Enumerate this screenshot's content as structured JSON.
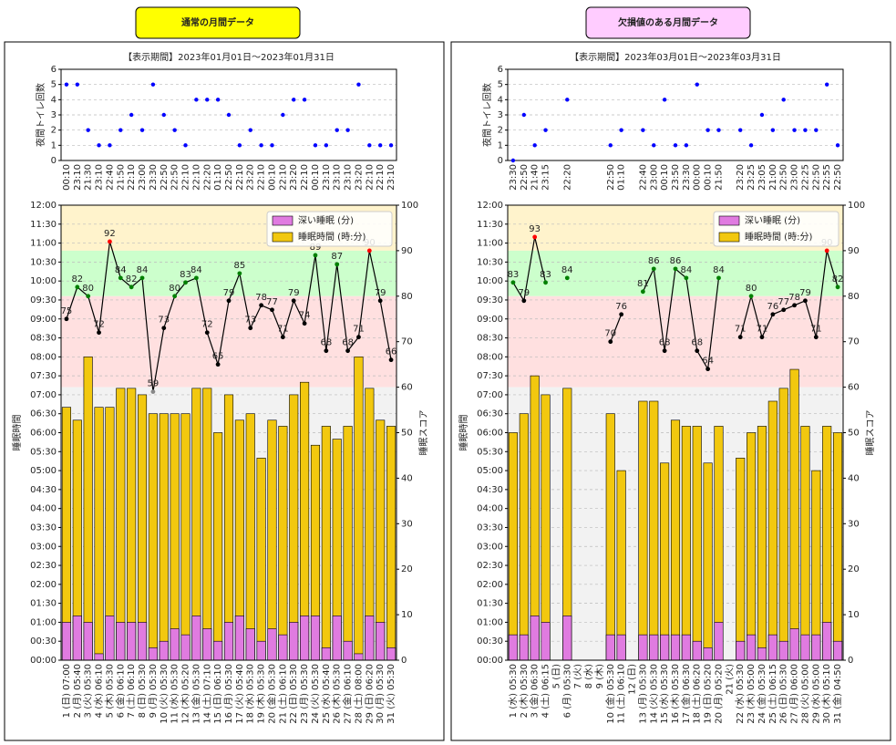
{
  "chart_data": [
    {
      "label": "通常の月間データ",
      "label_color": "#ffff00",
      "title": "【表示期間】2023年01月01日～2023年01月31日",
      "toilet": {
        "type": "scatter",
        "ylabel": "夜間トイレ回数",
        "color": "#0000ff",
        "grid": true,
        "categories": [
          "00:10",
          "23:10",
          "21:30",
          "23:10",
          "22:40",
          "21:50",
          "22:10",
          "23:00",
          "23:30",
          "22:50",
          "22:50",
          "22:10",
          "22:10",
          "22:20",
          "01:10",
          "22:50",
          "22:10",
          "23:20",
          "22:10",
          "00:10",
          "22:10",
          "23:20",
          "22:10",
          "00:10",
          "23:10",
          "23:10",
          "23:10",
          "23:20",
          "22:10",
          "22:10",
          "23:10"
        ],
        "values": [
          5,
          5,
          2,
          1,
          1,
          2,
          3,
          2,
          5,
          3,
          2,
          1,
          4,
          4,
          4,
          3,
          1,
          2,
          1,
          1,
          3,
          4,
          4,
          1,
          1,
          2,
          2,
          5,
          1,
          1,
          1
        ],
        "ylim": [
          0,
          6
        ],
        "yticks": [
          0,
          1,
          2,
          3,
          4,
          5,
          6
        ]
      },
      "sleep": {
        "type": "bar",
        "ylabel": "睡眠時間",
        "y2label": "睡眠スコア",
        "grid": true,
        "legend": "upper right",
        "categories": [
          "1 (日) 07:00",
          "2 (月) 05:40",
          "3 (火) 05:30",
          "4 (水) 06:10",
          "5 (木) 05:30",
          "6 (金) 06:10",
          "7 (土) 06:10",
          "8 (日) 05:30",
          "9 (月) 05:30",
          "10 (火) 05:30",
          "11 (水) 05:30",
          "12 (木) 05:20",
          "13 (金) 05:30",
          "14 (土) 07:10",
          "15 (日) 06:10",
          "16 (月) 05:30",
          "17 (火) 05:40",
          "18 (水) 05:30",
          "19 (木) 05:30",
          "20 (金) 05:30",
          "21 (土) 06:10",
          "22 (日) 05:30",
          "23 (月) 05:30",
          "24 (火) 05:30",
          "25 (水) 05:40",
          "26 (木) 05:30",
          "27 (金) 06:10",
          "28 (土) 08:00",
          "29 (日) 06:20",
          "30 (月) 05:30",
          "31 (火) 05:30"
        ],
        "series": [
          {
            "name": "深い睡眠 (分)",
            "color": "#e07be0",
            "values": [
              1,
              1.17,
              1,
              0.17,
              1.17,
              1,
              1,
              1,
              0.33,
              0.5,
              0.83,
              0.67,
              1.17,
              0.83,
              0.5,
              1,
              1.17,
              0.83,
              0.5,
              0.83,
              0.67,
              1,
              1.17,
              1.17,
              0.33,
              1.17,
              0.5,
              0.17,
              1.17,
              1,
              0.33
            ]
          },
          {
            "name": "睡眠時間 (時:分)",
            "color": "#f2c80f",
            "values": [
              6.67,
              6.33,
              8,
              6.67,
              6.67,
              7.17,
              7.17,
              7,
              6.5,
              6.5,
              6.5,
              6.5,
              7.17,
              7.17,
              6,
              7,
              6.33,
              6.5,
              5.33,
              6.33,
              6.17,
              7,
              7.33,
              5.67,
              6.17,
              5.83,
              6.17,
              8,
              7.17,
              6.33,
              6.17
            ]
          }
        ],
        "line": {
          "type": "line",
          "axis": "y2",
          "color": "#000000",
          "values": [
            75,
            82,
            80,
            72,
            92,
            84,
            82,
            84,
            59,
            73,
            80,
            83,
            84,
            72,
            65,
            79,
            85,
            73,
            78,
            77,
            71,
            79,
            74,
            89,
            68,
            87,
            68,
            71,
            90,
            79,
            66
          ]
        },
        "bands": [
          {
            "from": 90,
            "to": 100,
            "color": "#fff3cc",
            "marker": "#ff0000"
          },
          {
            "from": 80,
            "to": 90,
            "color": "#ccffcc",
            "marker": "#008000"
          },
          {
            "from": 60,
            "to": 80,
            "color": "#ffe0e0",
            "marker": "#000000"
          },
          {
            "from": 0,
            "to": 60,
            "color": "#f2f2f2",
            "marker": "#888888"
          }
        ],
        "ylim": [
          0,
          12
        ],
        "yticks": [
          {
            "value": 0,
            "label": "00:00"
          },
          {
            "value": 0.5,
            "label": "00:30"
          },
          {
            "value": 1,
            "label": "01:00"
          },
          {
            "value": 1.5,
            "label": "01:30"
          },
          {
            "value": 2,
            "label": "02:00"
          },
          {
            "value": 2.5,
            "label": "02:30"
          },
          {
            "value": 3,
            "label": "03:00"
          },
          {
            "value": 3.5,
            "label": "03:30"
          },
          {
            "value": 4,
            "label": "04:00"
          },
          {
            "value": 4.5,
            "label": "04:30"
          },
          {
            "value": 5,
            "label": "05:00"
          },
          {
            "value": 5.5,
            "label": "05:30"
          },
          {
            "value": 6,
            "label": "06:00"
          },
          {
            "value": 6.5,
            "label": "06:30"
          },
          {
            "value": 7,
            "label": "07:00"
          },
          {
            "value": 7.5,
            "label": "07:30"
          },
          {
            "value": 8,
            "label": "08:00"
          },
          {
            "value": 8.5,
            "label": "08:30"
          },
          {
            "value": 9,
            "label": "09:00"
          },
          {
            "value": 9.5,
            "label": "09:30"
          },
          {
            "value": 10,
            "label": "10:00"
          },
          {
            "value": 10.5,
            "label": "10:30"
          },
          {
            "value": 11,
            "label": "11:00"
          },
          {
            "value": 11.5,
            "label": "11:30"
          },
          {
            "value": 12,
            "label": "12:00"
          }
        ],
        "y2lim": [
          0,
          100
        ],
        "y2ticks": [
          0,
          10,
          20,
          30,
          40,
          50,
          60,
          70,
          80,
          90,
          100
        ]
      }
    },
    {
      "label": "欠損値のある月間データ",
      "label_color": "#ffccff",
      "title": "【表示期間】2023年03月01日～2023年03月31日",
      "toilet": {
        "type": "scatter",
        "ylabel": "夜間トイレ回数",
        "color": "#0000ff",
        "grid": true,
        "categories": [
          "23:30",
          "22:50",
          "21:40",
          "23:15",
          null,
          "22:20",
          null,
          null,
          null,
          "22:50",
          "01:10",
          null,
          "22:40",
          "23:00",
          "00:10",
          "23:50",
          "23:30",
          "00:00",
          "00:10",
          "21:50",
          null,
          "23:20",
          "23:25",
          "23:05",
          "21:00",
          "22:50",
          "23:00",
          "22:25",
          "22:50",
          "22:55",
          "22:50"
        ],
        "values": [
          0,
          3,
          1,
          2,
          null,
          4,
          null,
          null,
          null,
          1,
          2,
          null,
          2,
          1,
          4,
          1,
          1,
          5,
          2,
          2,
          null,
          2,
          1,
          3,
          2,
          4,
          2,
          2,
          2,
          5,
          1
        ],
        "ylim": [
          0,
          6
        ],
        "yticks": [
          0,
          1,
          2,
          3,
          4,
          5,
          6
        ]
      },
      "sleep": {
        "type": "bar",
        "ylabel": "睡眠時間",
        "y2label": "睡眠スコア",
        "grid": true,
        "legend": "upper right",
        "categories": [
          "1 (水) 05:30",
          "2 (木) 05:30",
          "3 (金) 06:30",
          "4 (土) 06:15",
          "5 (日)",
          "6 (月) 05:30",
          "7 (火)",
          "8 (水)",
          "9 (木)",
          "10 (金) 05:30",
          "11 (土) 06:10",
          "12 (日)",
          "13 (月) 05:30",
          "14 (火) 05:30",
          "15 (水) 05:30",
          "16 (木) 05:30",
          "17 (金) 06:30",
          "18 (土) 06:20",
          "19 (日) 05:20",
          "20 (月) 05:20",
          "21 (火)",
          "22 (水) 05:30",
          "23 (木) 05:00",
          "24 (金) 05:30",
          "25 (土) 06:15",
          "26 (日) 05:30",
          "27 (月) 06:00",
          "28 (火) 05:00",
          "29 (水) 05:00",
          "30 (木) 05:10",
          "31 (金) 04:50"
        ],
        "series": [
          {
            "name": "深い睡眠 (分)",
            "color": "#e07be0",
            "values": [
              0.67,
              0.67,
              1.17,
              1,
              null,
              1.17,
              null,
              null,
              null,
              0.67,
              0.67,
              null,
              0.67,
              0.67,
              0.67,
              0.67,
              0.67,
              0.5,
              0.33,
              1,
              null,
              0.5,
              0.67,
              0.33,
              0.67,
              0.5,
              0.83,
              0.67,
              0.67,
              1,
              0.5
            ]
          },
          {
            "name": "睡眠時間 (時:分)",
            "color": "#f2c80f",
            "values": [
              6,
              6.5,
              7.5,
              7,
              null,
              7.17,
              null,
              null,
              null,
              6.5,
              5,
              null,
              6.83,
              6.83,
              5.2,
              6.33,
              6.17,
              6.17,
              5.2,
              6.17,
              null,
              5.33,
              6,
              6.17,
              6.83,
              7.17,
              7.67,
              6.17,
              5,
              6.17,
              6
            ]
          }
        ],
        "line": {
          "type": "line",
          "axis": "y2",
          "color": "#000000",
          "values": [
            83,
            79,
            93,
            83,
            null,
            84,
            null,
            null,
            null,
            70,
            76,
            null,
            81,
            86,
            68,
            86,
            84,
            68,
            64,
            84,
            null,
            71,
            80,
            71,
            76,
            77,
            78,
            79,
            71,
            90,
            82
          ]
        },
        "bands": [
          {
            "from": 90,
            "to": 100,
            "color": "#fff3cc",
            "marker": "#ff0000"
          },
          {
            "from": 80,
            "to": 90,
            "color": "#ccffcc",
            "marker": "#008000"
          },
          {
            "from": 60,
            "to": 80,
            "color": "#ffe0e0",
            "marker": "#000000"
          },
          {
            "from": 0,
            "to": 60,
            "color": "#f2f2f2",
            "marker": "#888888"
          }
        ],
        "ylim": [
          0,
          12
        ],
        "yticks": [
          {
            "value": 0,
            "label": "00:00"
          },
          {
            "value": 0.5,
            "label": "00:30"
          },
          {
            "value": 1,
            "label": "01:00"
          },
          {
            "value": 1.5,
            "label": "01:30"
          },
          {
            "value": 2,
            "label": "02:00"
          },
          {
            "value": 2.5,
            "label": "02:30"
          },
          {
            "value": 3,
            "label": "03:00"
          },
          {
            "value": 3.5,
            "label": "03:30"
          },
          {
            "value": 4,
            "label": "04:00"
          },
          {
            "value": 4.5,
            "label": "04:30"
          },
          {
            "value": 5,
            "label": "05:00"
          },
          {
            "value": 5.5,
            "label": "05:30"
          },
          {
            "value": 6,
            "label": "06:00"
          },
          {
            "value": 6.5,
            "label": "06:30"
          },
          {
            "value": 7,
            "label": "07:00"
          },
          {
            "value": 7.5,
            "label": "07:30"
          },
          {
            "value": 8,
            "label": "08:00"
          },
          {
            "value": 8.5,
            "label": "08:30"
          },
          {
            "value": 9,
            "label": "09:00"
          },
          {
            "value": 9.5,
            "label": "09:30"
          },
          {
            "value": 10,
            "label": "10:00"
          },
          {
            "value": 10.5,
            "label": "10:30"
          },
          {
            "value": 11,
            "label": "11:00"
          },
          {
            "value": 11.5,
            "label": "11:30"
          },
          {
            "value": 12,
            "label": "12:00"
          }
        ],
        "y2lim": [
          0,
          100
        ],
        "y2ticks": [
          0,
          10,
          20,
          30,
          40,
          50,
          60,
          70,
          80,
          90,
          100
        ]
      }
    }
  ]
}
